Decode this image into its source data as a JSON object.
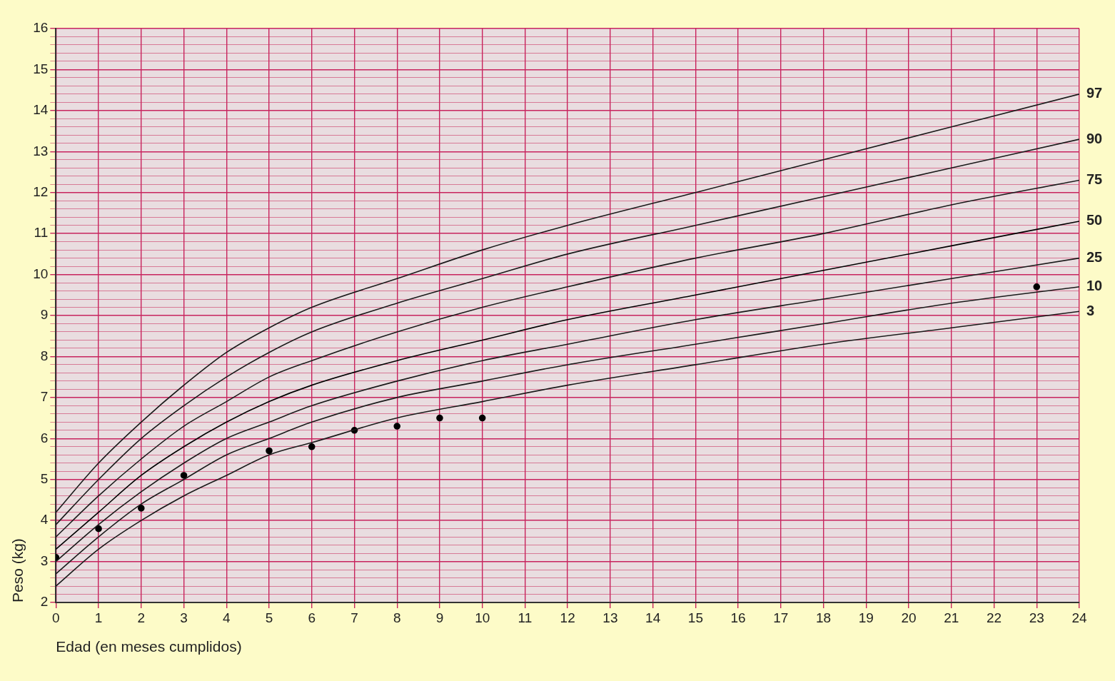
{
  "chart_data": {
    "type": "line",
    "xlabel": "Edad (en meses cumplidos)",
    "ylabel": "Peso (kg)",
    "xlim": [
      0,
      24
    ],
    "xticks": [
      0,
      1,
      2,
      3,
      4,
      5,
      6,
      7,
      8,
      9,
      10,
      11,
      12,
      13,
      14,
      15,
      16,
      17,
      18,
      19,
      20,
      21,
      22,
      23,
      24
    ],
    "ylim": [
      2,
      16
    ],
    "yticks": [
      2,
      {
        "value": 2.2,
        "label": null
      },
      {
        "value": 2.4,
        "label": null
      },
      {
        "value": 2.6,
        "label": null
      },
      {
        "value": 2.8,
        "label": null
      },
      3,
      {
        "value": 3.2,
        "label": null
      },
      {
        "value": 3.4,
        "label": null
      },
      {
        "value": 3.6,
        "label": null
      },
      {
        "value": 3.8,
        "label": null
      },
      4,
      {
        "value": 4.2,
        "label": null
      },
      {
        "value": 4.4,
        "label": null
      },
      {
        "value": 4.6,
        "label": null
      },
      {
        "value": 4.8,
        "label": null
      },
      5,
      {
        "value": 5.2,
        "label": null
      },
      {
        "value": 5.4,
        "label": null
      },
      {
        "value": 5.6,
        "label": null
      },
      {
        "value": 5.8,
        "label": null
      },
      6,
      {
        "value": 6.2,
        "label": null
      },
      {
        "value": 6.4,
        "label": null
      },
      {
        "value": 6.6,
        "label": null
      },
      {
        "value": 6.8,
        "label": null
      },
      7,
      {
        "value": 7.2,
        "label": null
      },
      {
        "value": 7.4,
        "label": null
      },
      {
        "value": 7.6,
        "label": null
      },
      {
        "value": 7.8,
        "label": null
      },
      8,
      {
        "value": 8.2,
        "label": null
      },
      {
        "value": 8.4,
        "label": null
      },
      {
        "value": 8.6,
        "label": null
      },
      {
        "value": 8.8,
        "label": null
      },
      9,
      {
        "value": 9.2,
        "label": null
      },
      {
        "value": 9.4,
        "label": null
      },
      {
        "value": 9.6,
        "label": null
      },
      {
        "value": 9.8,
        "label": null
      },
      10,
      {
        "value": 10.2,
        "label": null
      },
      {
        "value": 10.4,
        "label": null
      },
      {
        "value": 10.6,
        "label": null
      },
      {
        "value": 10.8,
        "label": null
      },
      11,
      {
        "value": 11.2,
        "label": null
      },
      {
        "value": 11.4,
        "label": null
      },
      {
        "value": 11.6,
        "label": null
      },
      {
        "value": 11.8,
        "label": null
      },
      12,
      {
        "value": 12.2,
        "label": null
      },
      {
        "value": 12.4,
        "label": null
      },
      {
        "value": 12.6,
        "label": null
      },
      {
        "value": 12.8,
        "label": null
      },
      13,
      {
        "value": 13.2,
        "label": null
      },
      {
        "value": 13.4,
        "label": null
      },
      {
        "value": 13.6,
        "label": null
      },
      {
        "value": 13.8,
        "label": null
      },
      14,
      {
        "value": 14.2,
        "label": null
      },
      {
        "value": 14.4,
        "label": null
      },
      {
        "value": 14.6,
        "label": null
      },
      {
        "value": 14.8,
        "label": null
      },
      15,
      {
        "value": 15.2,
        "label": null
      },
      {
        "value": 15.4,
        "label": null
      },
      {
        "value": 15.6,
        "label": null
      },
      {
        "value": 15.8,
        "label": null
      },
      16
    ],
    "grid": true,
    "legend": false,
    "marker": "none",
    "line_style": "solid",
    "x": [
      0,
      1,
      2,
      3,
      4,
      5,
      6,
      8,
      10,
      12,
      15,
      18,
      21,
      24
    ],
    "series": [
      {
        "name": "97",
        "color": "#1a1a1a",
        "values": [
          4.2,
          5.4,
          6.4,
          7.3,
          8.1,
          8.7,
          9.2,
          9.9,
          10.6,
          11.2,
          12.0,
          12.8,
          13.6,
          14.4
        ]
      },
      {
        "name": "90",
        "color": "#1a1a1a",
        "values": [
          3.9,
          5.0,
          6.0,
          6.8,
          7.5,
          8.1,
          8.6,
          9.3,
          9.9,
          10.5,
          11.2,
          11.9,
          12.6,
          13.3
        ]
      },
      {
        "name": "75",
        "color": "#1a1a1a",
        "values": [
          3.6,
          4.6,
          5.5,
          6.3,
          6.9,
          7.5,
          7.9,
          8.6,
          9.2,
          9.7,
          10.4,
          11.0,
          11.7,
          12.3
        ]
      },
      {
        "name": "50",
        "color": "#000000",
        "values": [
          3.3,
          4.2,
          5.1,
          5.8,
          6.4,
          6.9,
          7.3,
          7.9,
          8.4,
          8.9,
          9.5,
          10.1,
          10.7,
          11.3
        ]
      },
      {
        "name": "25",
        "color": "#1a1a1a",
        "values": [
          3.0,
          3.9,
          4.7,
          5.4,
          6.0,
          6.4,
          6.8,
          7.4,
          7.9,
          8.3,
          8.9,
          9.4,
          9.9,
          10.4
        ]
      },
      {
        "name": "10",
        "color": "#1a1a1a",
        "values": [
          2.7,
          3.6,
          4.4,
          5.0,
          5.6,
          6.0,
          6.4,
          7.0,
          7.4,
          7.8,
          8.3,
          8.8,
          9.3,
          9.7
        ]
      },
      {
        "name": "3",
        "color": "#1a1a1a",
        "values": [
          2.4,
          3.3,
          4.0,
          4.6,
          5.1,
          5.6,
          5.9,
          6.5,
          6.9,
          7.3,
          7.8,
          8.3,
          8.7,
          9.1
        ]
      },
      {
        "type": "scatter",
        "marker": "circle",
        "color": "#000000",
        "x": [
          0,
          1,
          2,
          3,
          5,
          6,
          7,
          8,
          9,
          10,
          23
        ],
        "values": [
          3.1,
          3.8,
          4.3,
          5.1,
          5.7,
          5.8,
          6.2,
          6.3,
          6.5,
          6.5,
          9.7
        ]
      }
    ]
  }
}
